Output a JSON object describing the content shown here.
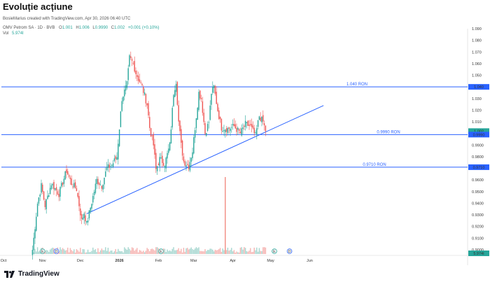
{
  "page_title": "Evoluție acțiune",
  "watermark": "BosieMarius created with TradingView.com, Apr 30, 2026 06:40 UTC",
  "symbol_line": "OMV Petrom SA · 1D · BVB",
  "ohlc": {
    "o_label": "O",
    "o": "1.001",
    "h_label": "H",
    "h": "1.006",
    "l_label": "L",
    "l": "0.9990",
    "c_label": "C",
    "c": "1.002",
    "change": "+0.001 (+0.10%)"
  },
  "vol": {
    "label": "Vol",
    "value": "5.974I"
  },
  "brand": "TradingView",
  "colors": {
    "up": "#26a69a",
    "down": "#ef5350",
    "line": "#2962ff",
    "vol_up": "#a5d6cf",
    "vol_down": "#f5b3b1",
    "vol_spike": "#f28b82"
  },
  "chart_data": {
    "type": "candlestick",
    "y_range": [
      0.9,
      1.09
    ],
    "y_ticks": [
      "1.090",
      "1.080",
      "1.070",
      "1.060",
      "1.050",
      "1.040",
      "1.030",
      "1.020",
      "1.010",
      "1.000",
      "0.9900",
      "0.9800",
      "0.9700",
      "0.9600",
      "0.9500",
      "0.9400",
      "0.9300",
      "0.9200",
      "0.9100",
      "0.9000"
    ],
    "x_ticks": [
      {
        "label": "Oct",
        "day": 0
      },
      {
        "label": "Nov",
        "day": 31
      },
      {
        "label": "Dec",
        "day": 61
      },
      {
        "label": "2026",
        "day": 92
      },
      {
        "label": "Feb",
        "day": 123
      },
      {
        "label": "Mar",
        "day": 151
      },
      {
        "label": "Apr",
        "day": 182
      },
      {
        "label": "May",
        "day": 212
      },
      {
        "label": "Jun",
        "day": 243
      }
    ],
    "price_labels": [
      {
        "value": 1.04,
        "text": "1.040"
      },
      {
        "value": 1.002,
        "text": "1.002"
      },
      {
        "value": 0.999,
        "text": "0.9990"
      },
      {
        "value": 0.971,
        "text": "0.9710"
      }
    ],
    "levels": [
      {
        "value": 1.04,
        "label": "1.040 RON"
      },
      {
        "value": 0.999,
        "label": "0.9990 RON"
      },
      {
        "value": 0.971,
        "label": "0.9710 RON"
      }
    ],
    "trendline": {
      "start": {
        "day": 66,
        "price": 0.931
      },
      "end": {
        "day": 254,
        "price": 1.024
      }
    },
    "events": [
      {
        "day": 31,
        "icon": "E"
      },
      {
        "day": 42,
        "icon": "D"
      },
      {
        "day": 125,
        "icon": "E"
      },
      {
        "day": 215,
        "icon": "E"
      },
      {
        "day": 227,
        "icon": "D"
      }
    ],
    "control_points": [
      {
        "day": 23,
        "price": 0.9
      },
      {
        "day": 27,
        "price": 0.94
      },
      {
        "day": 30,
        "price": 0.955
      },
      {
        "day": 33,
        "price": 0.938
      },
      {
        "day": 38,
        "price": 0.957
      },
      {
        "day": 44,
        "price": 0.948
      },
      {
        "day": 50,
        "price": 0.968
      },
      {
        "day": 54,
        "price": 0.957
      },
      {
        "day": 58,
        "price": 0.952
      },
      {
        "day": 62,
        "price": 0.925
      },
      {
        "day": 64,
        "price": 0.932
      },
      {
        "day": 66,
        "price": 0.922
      },
      {
        "day": 70,
        "price": 0.941
      },
      {
        "day": 74,
        "price": 0.96
      },
      {
        "day": 78,
        "price": 0.955
      },
      {
        "day": 82,
        "price": 0.97
      },
      {
        "day": 86,
        "price": 0.973
      },
      {
        "day": 90,
        "price": 0.98
      },
      {
        "day": 94,
        "price": 1.03
      },
      {
        "day": 98,
        "price": 1.042
      },
      {
        "day": 100,
        "price": 1.065
      },
      {
        "day": 103,
        "price": 1.06
      },
      {
        "day": 105,
        "price": 1.052
      },
      {
        "day": 107,
        "price": 1.047
      },
      {
        "day": 110,
        "price": 1.04
      },
      {
        "day": 114,
        "price": 1.025
      },
      {
        "day": 116,
        "price": 1.005
      },
      {
        "day": 119,
        "price": 0.99
      },
      {
        "day": 121,
        "price": 0.969
      },
      {
        "day": 124,
        "price": 0.978
      },
      {
        "day": 128,
        "price": 0.974
      },
      {
        "day": 132,
        "price": 0.99
      },
      {
        "day": 135,
        "price": 1.035
      },
      {
        "day": 137,
        "price": 1.045
      },
      {
        "day": 139,
        "price": 1.01
      },
      {
        "day": 141,
        "price": 0.99
      },
      {
        "day": 143,
        "price": 0.976
      },
      {
        "day": 147,
        "price": 0.972
      },
      {
        "day": 150,
        "price": 0.985
      },
      {
        "day": 153,
        "price": 1.015
      },
      {
        "day": 155,
        "price": 1.035
      },
      {
        "day": 157,
        "price": 1.03
      },
      {
        "day": 160,
        "price": 1.0
      },
      {
        "day": 163,
        "price": 1.01
      },
      {
        "day": 165,
        "price": 1.035
      },
      {
        "day": 167,
        "price": 1.04
      },
      {
        "day": 170,
        "price": 1.02
      },
      {
        "day": 173,
        "price": 1.005
      },
      {
        "day": 178,
        "price": 1.004
      },
      {
        "day": 183,
        "price": 1.006
      },
      {
        "day": 188,
        "price": 1.0
      },
      {
        "day": 192,
        "price": 1.008
      },
      {
        "day": 196,
        "price": 1.006
      },
      {
        "day": 200,
        "price": 0.998
      },
      {
        "day": 203,
        "price": 1.015
      },
      {
        "day": 206,
        "price": 1.01
      },
      {
        "day": 208,
        "price": 1.002
      }
    ],
    "volume_spike": {
      "day": 176,
      "fraction": 1.0
    }
  }
}
